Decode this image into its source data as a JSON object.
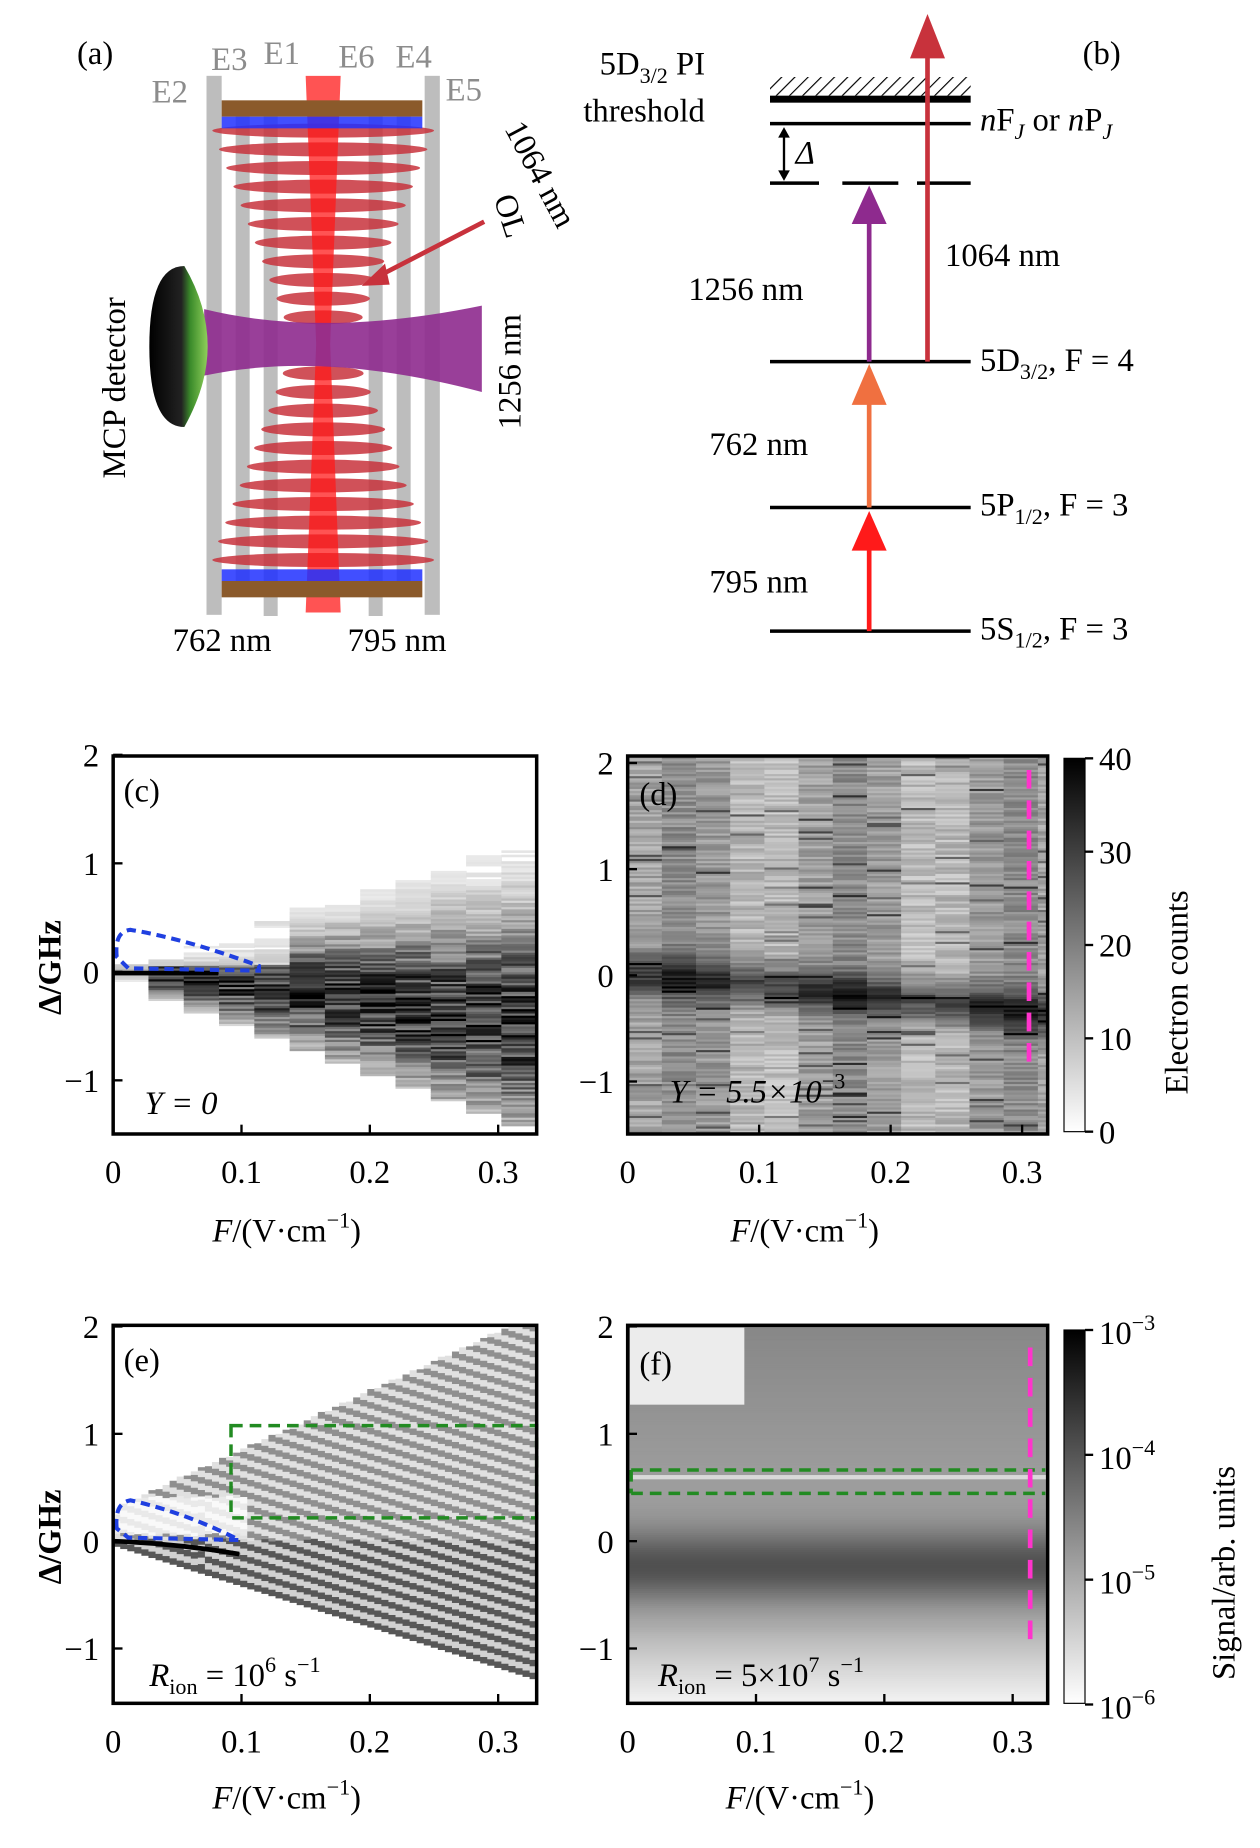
{
  "panel_a": {
    "label": "(a)",
    "electrodes": [
      "E2",
      "E3",
      "E1",
      "E6",
      "E4",
      "E5"
    ],
    "detector_label": "MCP detector",
    "beam_1064": "1064 nm",
    "ol_label": "OL",
    "beam_1256": "1256 nm",
    "beam_762": "762 nm",
    "beam_795": "795 nm",
    "colors": {
      "795": "#ff1a1a",
      "762": "#f07040",
      "1256": "#8e2a8e",
      "1064": "#c8323c"
    }
  },
  "panel_b": {
    "label": "(b)",
    "threshold_line1": "5D",
    "threshold_sub": "3/2",
    "threshold_line1b": " PI",
    "threshold_line2": "threshold",
    "rydberg": {
      "n": "n",
      "F": "F",
      "Jsub": "J",
      "or": " or ",
      "n2": "n",
      "P": "P",
      "Jsub2": "J"
    },
    "delta": "Δ",
    "levels": [
      {
        "main": "5D",
        "sub": "3/2",
        "F": ", F = 4"
      },
      {
        "main": "5P",
        "sub": "1/2",
        "F": ", F = 3"
      },
      {
        "main": "5S",
        "sub": "1/2",
        "F": ", F = 3"
      }
    ],
    "transitions": [
      "795 nm",
      "762 nm",
      "1256 nm",
      "1064 nm"
    ]
  },
  "chart_data": [
    {
      "panel": "(c)",
      "type": "heatmap",
      "xlabel": "F/(V·cm⁻¹)",
      "ylabel": "Δ/GHz",
      "xlim": [
        0,
        0.33
      ],
      "ylim": [
        -1.5,
        2
      ],
      "xticks": [
        "0",
        "0.1",
        "0.2",
        "0.3"
      ],
      "yticks": [
        "2",
        "1",
        "0",
        "−1"
      ],
      "annotation": "Y = 0",
      "colormap": "gray_r"
    },
    {
      "panel": "(d)",
      "type": "heatmap",
      "xlabel": "F/(V·cm⁻¹)",
      "xlim": [
        0,
        0.32
      ],
      "ylim": [
        -1.5,
        2.05
      ],
      "xticks": [
        "0",
        "0.1",
        "0.2",
        "0.3"
      ],
      "yticks": [
        "2",
        "1",
        "0",
        "−1"
      ],
      "annotation": "Y = 5.5×10⁻³",
      "colorbar": {
        "label": "Electron counts",
        "range": [
          0,
          40
        ],
        "ticks": [
          "40",
          "30",
          "20",
          "10",
          "0"
        ]
      },
      "marker_line": {
        "x": 0.31,
        "color": "#ff33cc",
        "style": "dashed"
      }
    },
    {
      "panel": "(e)",
      "type": "heatmap",
      "xlabel": "F/(V·cm⁻¹)",
      "ylabel": "Δ/GHz",
      "xlim": [
        0,
        0.33
      ],
      "ylim": [
        -1.5,
        2
      ],
      "xticks": [
        "0",
        "0.1",
        "0.2",
        "0.3"
      ],
      "yticks": [
        "2",
        "1",
        "0",
        "−1"
      ],
      "annotation": "R_ion = 10⁶ s⁻¹",
      "box": {
        "x": [
          0.09,
          0.33
        ],
        "y": [
          0.22,
          1.08
        ],
        "color": "#228b22"
      }
    },
    {
      "panel": "(f)",
      "type": "heatmap",
      "xlabel": "F/(V·cm⁻¹)",
      "xlim": [
        0,
        0.32
      ],
      "ylim": [
        -1.5,
        2
      ],
      "xticks": [
        "0",
        "0.1",
        "0.2",
        "0.3"
      ],
      "yticks": [
        "2",
        "1",
        "0",
        "−1"
      ],
      "annotation": "R_ion = 5×10⁷ s⁻¹",
      "colorbar": {
        "label": "Signal/arb. units",
        "scale": "log",
        "range": [
          1e-06,
          0.001
        ],
        "ticks": [
          "10⁻³",
          "10⁻⁴",
          "10⁻⁵",
          "10⁻⁶"
        ]
      },
      "box": {
        "x": [
          0,
          0.32
        ],
        "y": [
          0.48,
          0.7
        ],
        "color": "#228b22"
      },
      "marker_line": {
        "x": 0.31,
        "color": "#ff33cc",
        "style": "dashed"
      }
    }
  ],
  "labels": {
    "c": "(c)",
    "d": "(d)",
    "e": "(e)",
    "f": "(f)",
    "ylabel": "Δ/GHz",
    "xlabel_F": "F",
    "xlabel_rest": "/(V·cm",
    "xlabel_exp": "−1",
    "xlabel_close": ")",
    "ann_c": "Y = 0",
    "ann_d": "Y = 5.5×10",
    "ann_d_exp": "−3",
    "ann_e_R": "R",
    "ann_e_sub": "ion",
    "ann_e_val": " = 10",
    "ann_e_exp": "6",
    "ann_e_unit": " s",
    "ann_e_unit_exp": "−1",
    "ann_f_R": "R",
    "ann_f_sub": "ion",
    "ann_f_val": " = 5×10",
    "ann_f_exp": "7",
    "ann_f_unit": " s",
    "ann_f_unit_exp": "−1",
    "cb_d_label": "Electron counts",
    "cb_d_ticks": [
      "40",
      "30",
      "20",
      "10",
      "0"
    ],
    "cb_f_label": "Signal/arb. units",
    "cb_f_ticks": [
      "−3",
      "−4",
      "−5",
      "−6"
    ],
    "ten": "10",
    "xticks": [
      "0",
      "0.1",
      "0.2",
      "0.3"
    ],
    "yticks": [
      "2",
      "1",
      "0",
      "−1"
    ]
  }
}
